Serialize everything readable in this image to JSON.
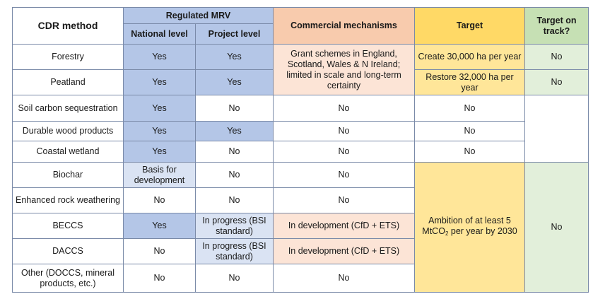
{
  "header": {
    "method": "CDR method",
    "mrv_group": "Regulated MRV",
    "national": "National level",
    "project": "Project level",
    "commercial": "Commercial mechanisms",
    "target": "Target",
    "on_track": "Target on track?"
  },
  "rows": [
    {
      "method": "Forestry",
      "national": "Yes",
      "project": "Yes"
    },
    {
      "method": "Peatland",
      "national": "Yes",
      "project": "Yes"
    },
    {
      "method": "Soil carbon sequestration",
      "national": "Yes",
      "project": "No",
      "commercial": "No",
      "target": "No"
    },
    {
      "method": "Durable wood products",
      "national": "Yes",
      "project": "Yes",
      "commercial": "No",
      "target": "No"
    },
    {
      "method": "Coastal wetland",
      "national": "Yes",
      "project": "No",
      "commercial": "No",
      "target": "No"
    },
    {
      "method": "Biochar",
      "national": "Basis for development",
      "project": "No",
      "commercial": "No"
    },
    {
      "method": "Enhanced rock weathering",
      "national": "No",
      "project": "No",
      "commercial": "No"
    },
    {
      "method": "BECCS",
      "national": "Yes",
      "project": "In progress (BSI standard)",
      "commercial": "In development (CfD + ETS)"
    },
    {
      "method": "DACCS",
      "national": "No",
      "project": "In progress (BSI standard)",
      "commercial": "In development (CfD + ETS)"
    },
    {
      "method": "Other (DOCCS, mineral products, etc.)",
      "national": "No",
      "project": "No",
      "commercial": "No"
    }
  ],
  "merged": {
    "forest_peat_commercial": "Grant schemes in England, Scotland, Wales & N Ireland; limited in scale and long-term certainty",
    "forestry_target": "Create 30,000 ha per year",
    "peatland_target": "Restore 32,000 ha per year",
    "forestry_on_track": "No",
    "peatland_on_track": "No",
    "engineered_target_prefix": "Ambition of at least 5 MtCO",
    "engineered_target_sub": "2",
    "engineered_target_suffix": " per year by 2030",
    "engineered_on_track": "No"
  },
  "colors": {
    "blue": "#b4c6e7",
    "light_blue": "#dae3f3",
    "peach": "#fce4d6",
    "gold": "#ffe699",
    "green": "#e2efda"
  }
}
